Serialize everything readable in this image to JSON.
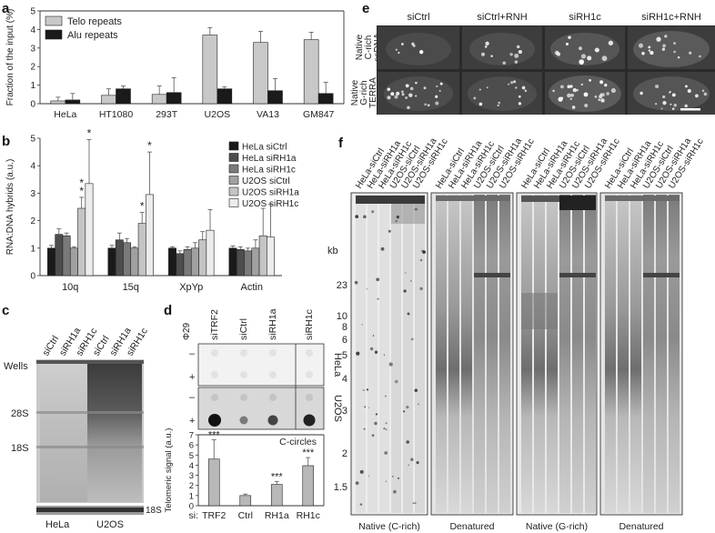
{
  "panels": {
    "a": {
      "letter": "a"
    },
    "b": {
      "letter": "b"
    },
    "c": {
      "letter": "c"
    },
    "d": {
      "letter": "d"
    },
    "e": {
      "letter": "e"
    },
    "f": {
      "letter": "f"
    }
  },
  "chart_data": [
    {
      "type": "bar",
      "panel": "a",
      "ylabel": "Fraction of the input (%)",
      "categories": [
        "HeLa",
        "HT1080",
        "293T",
        "U2OS",
        "VA13",
        "GM847"
      ],
      "ylim": [
        0,
        5
      ],
      "yticks": [
        0,
        1,
        2,
        3,
        4,
        5
      ],
      "legend_position": "top-left",
      "series": [
        {
          "name": "Telo repeats",
          "color": "#c8c8c8",
          "values": [
            0.15,
            0.45,
            0.5,
            3.7,
            3.3,
            3.45
          ],
          "errors": [
            0.2,
            0.35,
            0.45,
            0.4,
            0.6,
            0.4
          ]
        },
        {
          "name": "Alu repeats",
          "color": "#1a1a1a",
          "values": [
            0.2,
            0.8,
            0.6,
            0.8,
            0.7,
            0.55
          ],
          "errors": [
            0.35,
            0.15,
            0.8,
            0.1,
            0.65,
            0.6
          ]
        }
      ]
    },
    {
      "type": "bar",
      "panel": "b",
      "ylabel": "RNA:DNA hybrids (a.u.)",
      "categories": [
        "10q",
        "15q",
        "XpYp",
        "Actin"
      ],
      "ylim": [
        0,
        5
      ],
      "yticks": [
        0,
        1,
        2,
        3,
        4,
        5
      ],
      "legend_position": "top-right",
      "series": [
        {
          "name": "HeLa siCtrl",
          "color": "#1a1a1a",
          "values": [
            1.0,
            1.0,
            1.0,
            1.0
          ],
          "errors": [
            0.1,
            0.1,
            0.05,
            0.08
          ]
        },
        {
          "name": "HeLa siRH1a",
          "color": "#4d4d4d",
          "values": [
            1.5,
            1.3,
            0.8,
            0.95
          ],
          "errors": [
            0.2,
            0.25,
            0.1,
            0.1
          ]
        },
        {
          "name": "HeLa siRH1c",
          "color": "#7a7a7a",
          "values": [
            1.45,
            1.2,
            0.95,
            0.9
          ],
          "errors": [
            0.1,
            0.15,
            0.1,
            0.1
          ]
        },
        {
          "name": "U2OS siCtrl",
          "color": "#a0a0a0",
          "values": [
            1.0,
            1.0,
            1.0,
            1.0
          ],
          "errors": [
            0.05,
            0.05,
            0.2,
            0.3
          ]
        },
        {
          "name": "U2OS siRH1a",
          "color": "#c4c4c4",
          "values": [
            2.45,
            1.9,
            1.3,
            1.45
          ],
          "errors": [
            0.4,
            0.4,
            0.3,
            1.0
          ]
        },
        {
          "name": "U2OS siRH1c",
          "color": "#ececec",
          "values": [
            3.35,
            2.95,
            1.65,
            1.4
          ],
          "errors": [
            1.6,
            1.55,
            0.75,
            1.2
          ]
        }
      ],
      "significance": [
        {
          "category": "10q",
          "series": "U2OS siRH1a",
          "marks": "**"
        },
        {
          "category": "10q",
          "series": "U2OS siRH1c",
          "marks": "*"
        },
        {
          "category": "15q",
          "series": "U2OS siRH1a",
          "marks": "*"
        },
        {
          "category": "15q",
          "series": "U2OS siRH1c",
          "marks": "*"
        }
      ]
    },
    {
      "type": "bar",
      "panel": "d",
      "title": "C-circles",
      "ylabel": "Telomeric signal (a.u.)",
      "xprefix": "si:",
      "categories": [
        "TRF2",
        "Ctrl",
        "RH1a",
        "RH1c"
      ],
      "ylim": [
        0,
        7
      ],
      "yticks": [
        0,
        1,
        2,
        3,
        4,
        5,
        6,
        7
      ],
      "series": [
        {
          "name": "",
          "color": "#b8b8b8",
          "values": [
            4.6,
            1.0,
            2.1,
            3.95
          ],
          "errors": [
            1.9,
            0.15,
            0.3,
            0.8
          ]
        }
      ],
      "significance_marks": [
        "***",
        "",
        "***",
        "***"
      ]
    }
  ],
  "blot_c": {
    "lane_labels": [
      "siCtrl",
      "siRH1a",
      "siRH1c",
      "siCtrl",
      "siRH1a",
      "siRH1c"
    ],
    "left_markers": [
      "Wells",
      "28S",
      "18S"
    ],
    "right_marker": "18S",
    "group_labels": [
      "HeLa",
      "U2OS"
    ]
  },
  "blot_d": {
    "column_labels": [
      "siTRF2",
      "siCtrl",
      "siRH1a",
      "siRH1c"
    ],
    "phi_label": "Φ29",
    "rows": [
      {
        "sign": "–",
        "group": "HeLa"
      },
      {
        "sign": "+",
        "group": "HeLa"
      },
      {
        "sign": "–",
        "group": "U2OS"
      },
      {
        "sign": "+",
        "group": "U2OS"
      }
    ]
  },
  "micro_e": {
    "column_labels": [
      "siCtrl",
      "siCtrl+RNH",
      "siRH1c",
      "siRH1c+RNH"
    ],
    "row_labels": [
      [
        "Native",
        "C-rich",
        "ssDNA"
      ],
      [
        "Native",
        "G-rich",
        "TERRA",
        "+ssDNA"
      ]
    ]
  },
  "blot_f": {
    "lane_labels": [
      "HeLa-siCtrl",
      "HeLa-siRH1a",
      "HeLa-siRH1c",
      "U2OS-siCtrl",
      "U2OS-siRH1a",
      "U2OS-siRH1c"
    ],
    "size_unit": "kb",
    "size_markers": [
      "23",
      "10",
      "8",
      "6",
      "5",
      "4",
      "3",
      "2",
      "1.5"
    ],
    "panel_titles": [
      "Native (C-rich)",
      "Denatured",
      "Native (G-rich)",
      "Denatured"
    ]
  }
}
